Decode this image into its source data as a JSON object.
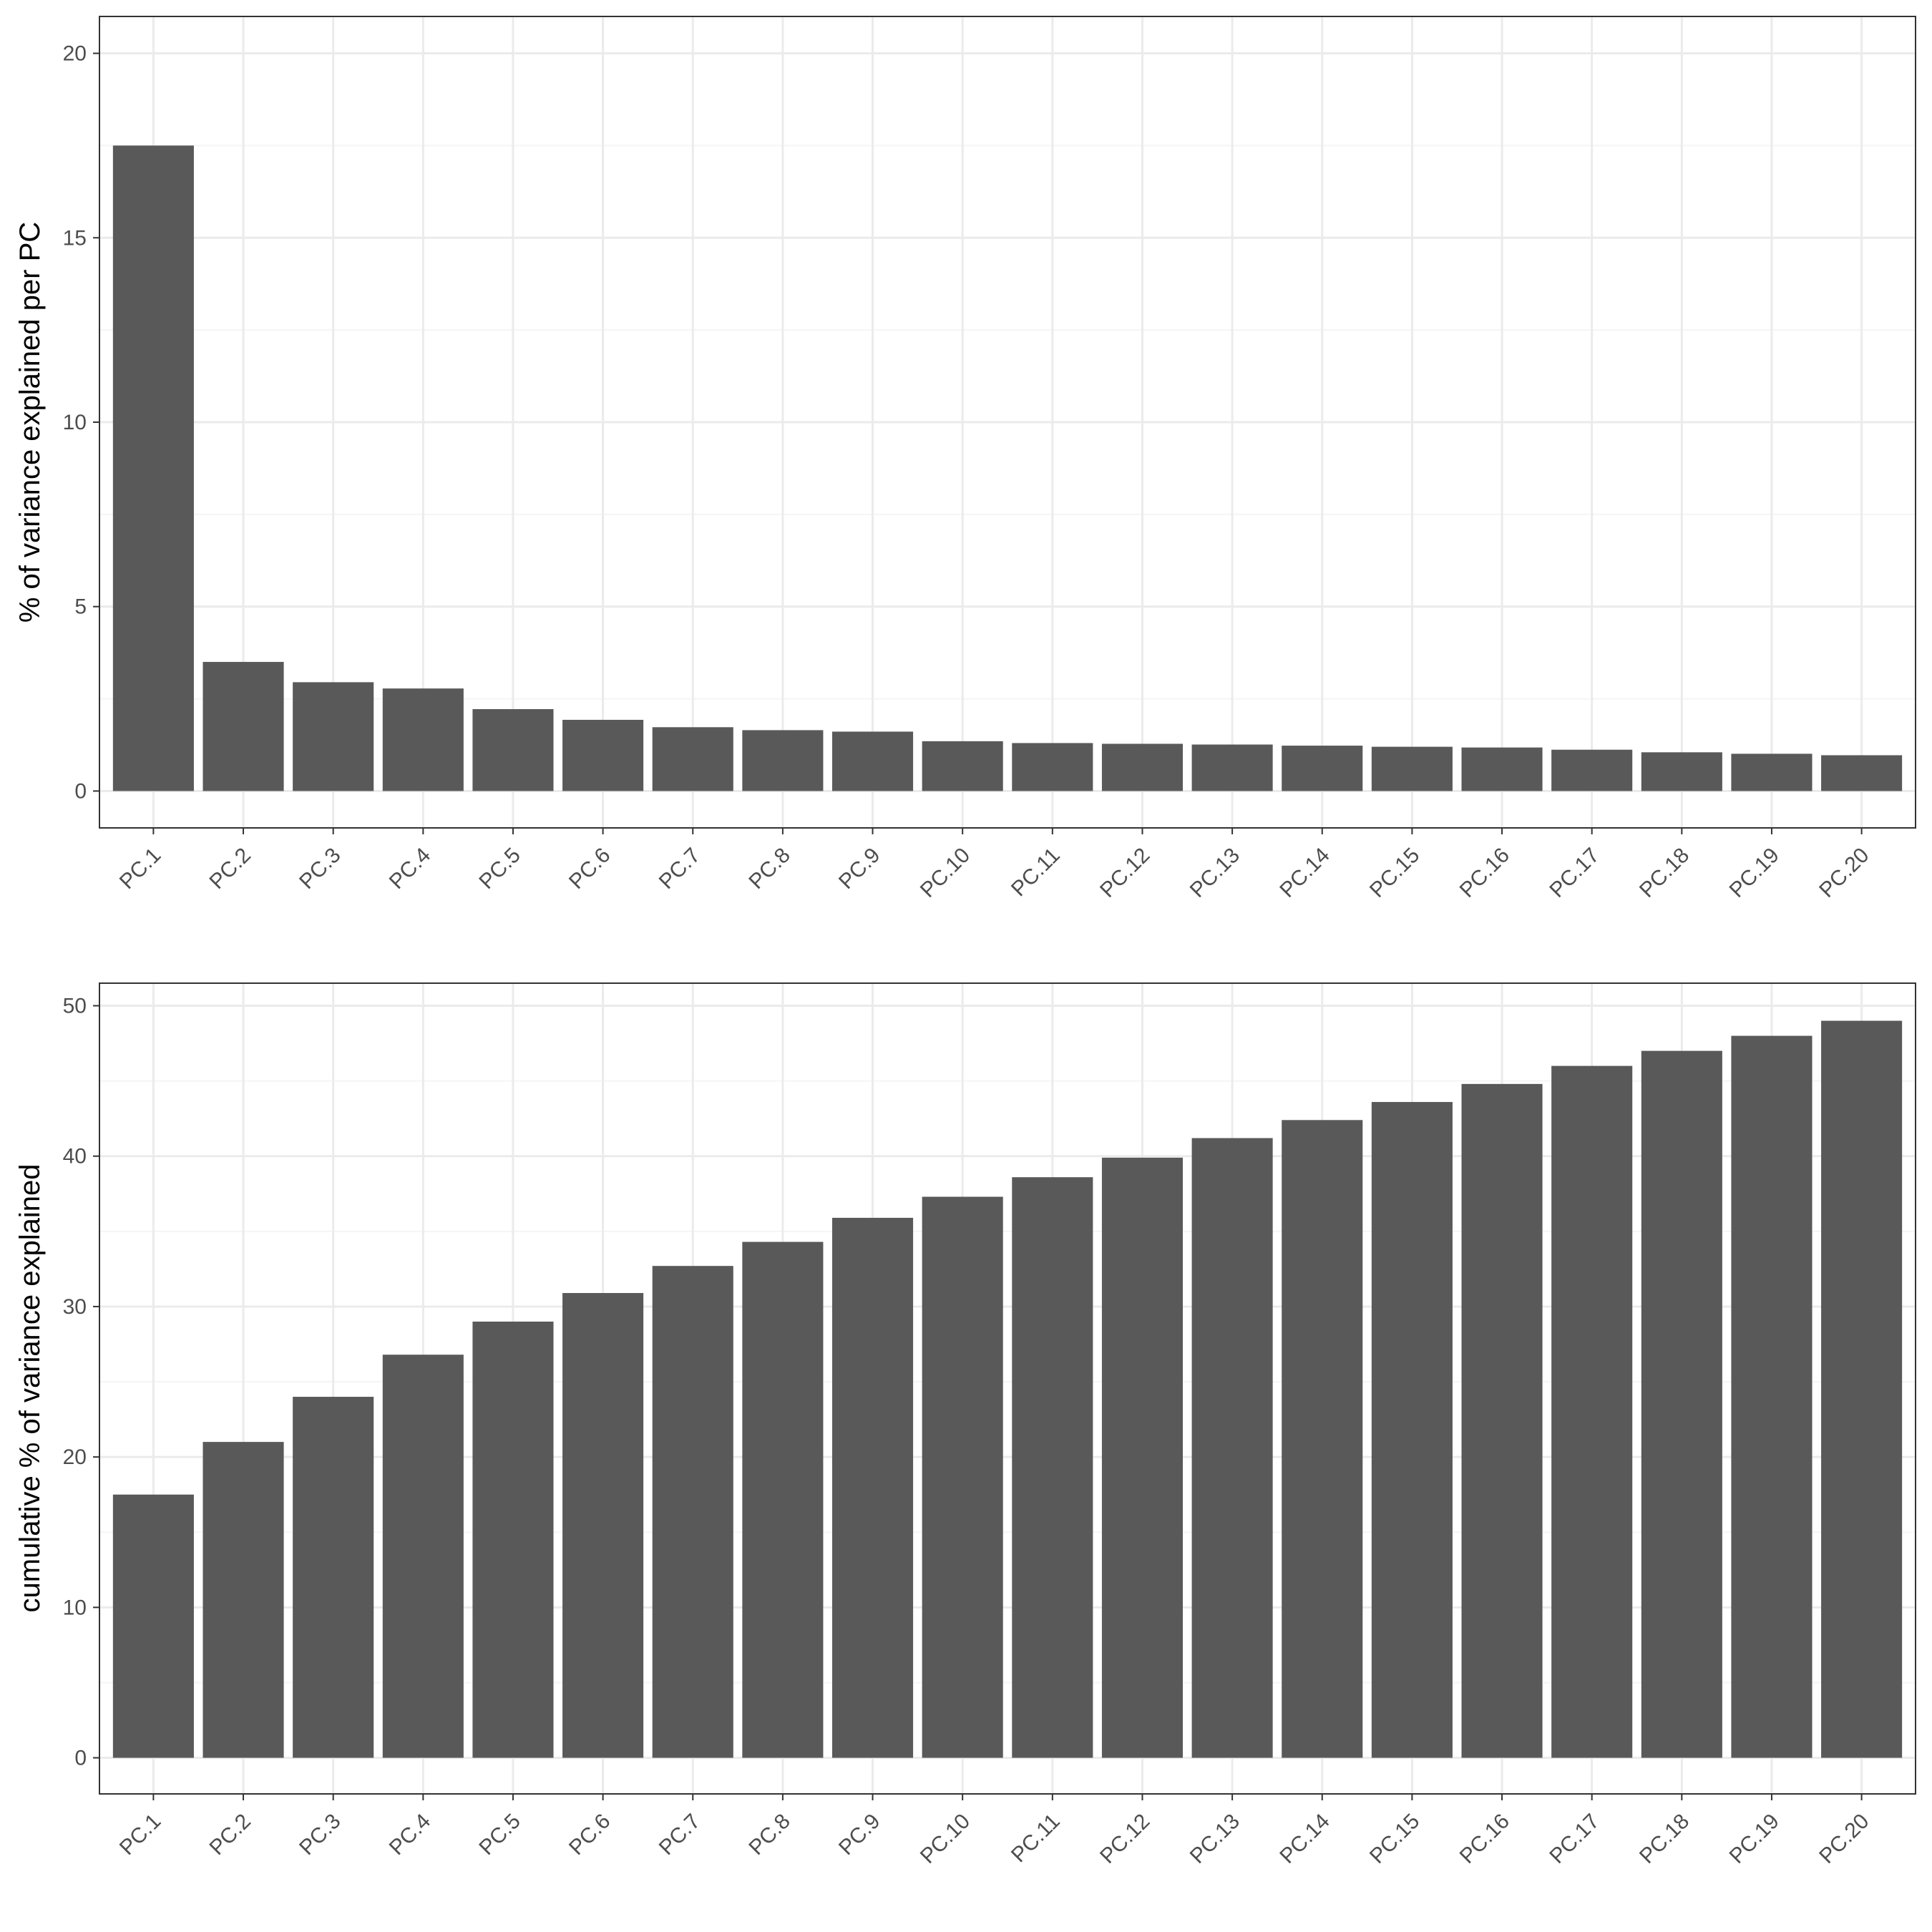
{
  "chart_data": [
    {
      "type": "bar",
      "categories": [
        "PC.1",
        "PC.2",
        "PC.3",
        "PC.4",
        "PC.5",
        "PC.6",
        "PC.7",
        "PC.8",
        "PC.9",
        "PC.10",
        "PC.11",
        "PC.12",
        "PC.13",
        "PC.14",
        "PC.15",
        "PC.16",
        "PC.17",
        "PC.18",
        "PC.19",
        "PC.20"
      ],
      "values": [
        17.5,
        3.5,
        2.95,
        2.78,
        2.22,
        1.93,
        1.73,
        1.65,
        1.61,
        1.35,
        1.3,
        1.28,
        1.26,
        1.23,
        1.2,
        1.18,
        1.12,
        1.05,
        1.01,
        0.97
      ],
      "title": "",
      "xlabel": "",
      "ylabel": "% of variance explained per PC",
      "ylim": [
        -1,
        21
      ],
      "yticks": [
        0,
        5,
        10,
        15,
        20
      ],
      "grid": true,
      "bar_color": "#595959"
    },
    {
      "type": "bar",
      "categories": [
        "PC.1",
        "PC.2",
        "PC.3",
        "PC.4",
        "PC.5",
        "PC.6",
        "PC.7",
        "PC.8",
        "PC.9",
        "PC.10",
        "PC.11",
        "PC.12",
        "PC.13",
        "PC.14",
        "PC.15",
        "PC.16",
        "PC.17",
        "PC.18",
        "PC.19",
        "PC.20"
      ],
      "values": [
        17.5,
        21.0,
        24.0,
        26.8,
        29.0,
        30.9,
        32.7,
        34.3,
        35.9,
        37.3,
        38.6,
        39.9,
        41.2,
        42.4,
        43.6,
        44.8,
        46.0,
        47.0,
        48.0,
        49.0
      ],
      "title": "",
      "xlabel": "",
      "ylabel": "cumulative % of variance explained",
      "ylim": [
        -2.4,
        51.5
      ],
      "yticks": [
        0,
        10,
        20,
        30,
        40,
        50
      ],
      "grid": true,
      "bar_color": "#595959"
    }
  ],
  "colors": {
    "background": "#ffffff",
    "panel_border": "#333333",
    "grid_major": "#ebebeb",
    "grid_minor": "#f5f5f5",
    "tick_text": "#4d4d4d",
    "axis_title": "#000000"
  }
}
